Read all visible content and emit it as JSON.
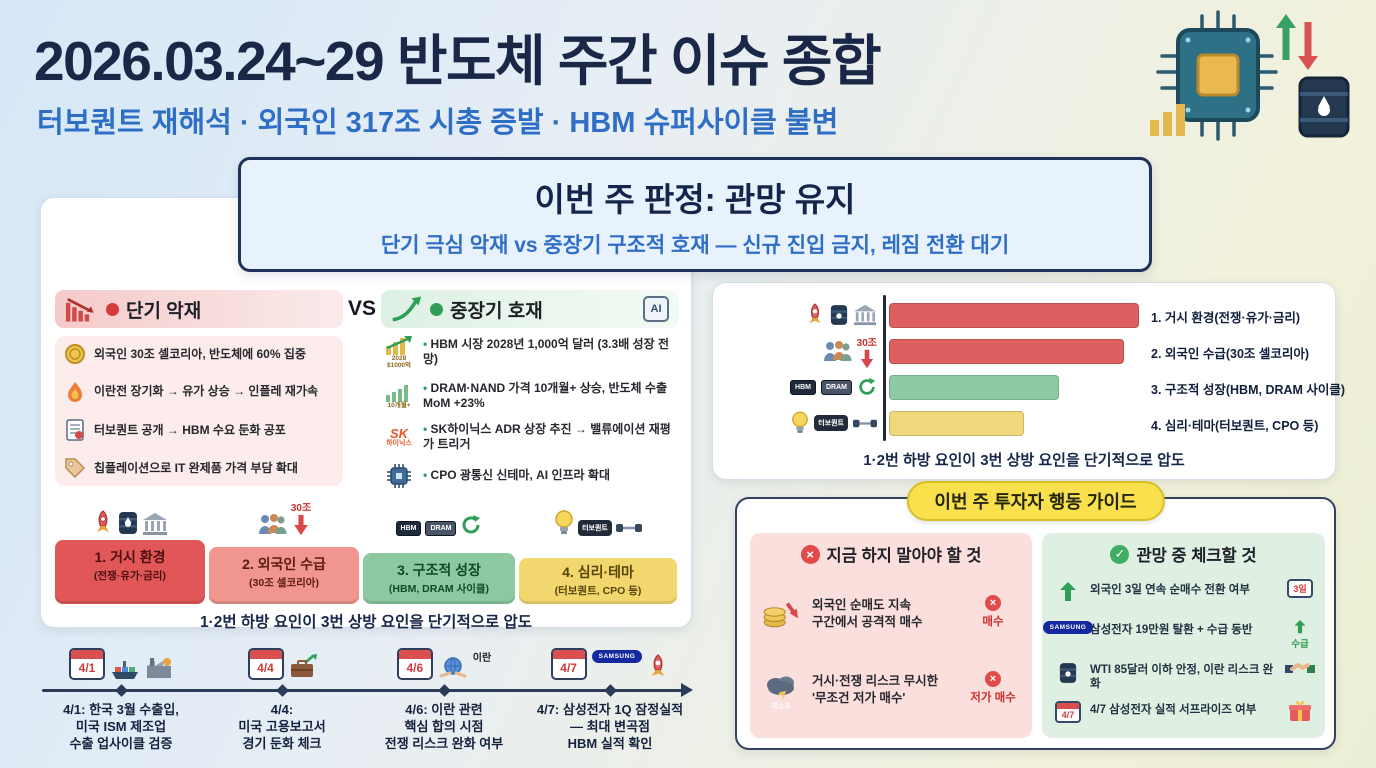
{
  "header": {
    "title": "2026.03.24~29 반도체 주간 이슈 종합",
    "subtitle": "터보퀀트 재해석 · 외국인 317조 시총 증발 · HBM 슈퍼사이클 불변"
  },
  "verdict": {
    "title": "이번 주 판정: 관망 유지",
    "subtitle": "단기 극심 악재 vs 중장기 구조적 호재 — 신규 진입 금지, 레짐 전환 대기"
  },
  "comparison": {
    "vs": "VS",
    "negative": {
      "title": "단기 악재",
      "items": [
        "외국인 30조 셀코리아, 반도체에 60% 집중",
        "이란전 장기화 → 유가 상승 → 인플레 재가속",
        "터보퀀트 공개 → HBM 수요 둔화 공포",
        "칩플레이션으로 IT 완제품 가격 부담 확대"
      ]
    },
    "positive": {
      "title": "중장기 호재",
      "items": [
        "HBM 시장 2028년 1,000억 달러 (3.3배 성장 전망)",
        "DRAM·NAND 가격 10개월+ 상승, 반도체 수출 MoM +23%",
        "SK하이닉스 ADR 상장 추진 → 밸류에이션 재평가 트리거",
        "CPO 광통신 신테마, AI 인프라 확대"
      ]
    }
  },
  "factors": {
    "items": [
      {
        "label": "1. 거시 환경",
        "sub": "(전쟁·유가·금리)"
      },
      {
        "label": "2. 외국인 수급",
        "sub": "(30조 셀코리아)"
      },
      {
        "label": "3. 구조적 성장",
        "sub": "(HBM, DRAM 사이클)"
      },
      {
        "label": "4. 심리·테마",
        "sub": "(터보퀀트, CPO 등)"
      }
    ],
    "caption": "1·2번 하방 요인이 3번 상방 요인을 단기적으로 압도"
  },
  "chart_data": {
    "type": "bar",
    "orientation": "horizontal",
    "categories": [
      "1. 거시 환경(전쟁·유가·금리)",
      "2. 외국인 수급(30조 셀코리아)",
      "3. 구조적 성장(HBM, DRAM 사이클)",
      "4. 심리·테마(터보퀀트, CPO 등)"
    ],
    "values": [
      100,
      94,
      68,
      54
    ],
    "colors": [
      "#dd5f5f",
      "#dd5f5f",
      "#8ecba5",
      "#f0d77b"
    ],
    "caption": "1·2번 하방 요인이 3번 상방 요인을 단기적으로 압도"
  },
  "timeline": [
    {
      "date": "4/1",
      "text": "4/1: 한국 3월 수출입,\n미국 ISM 제조업\n수출 업사이클 검증"
    },
    {
      "date": "4/4",
      "text": "4/4:\n미국 고용보고서\n경기 둔화 체크"
    },
    {
      "date": "4/6",
      "text": "4/6: 이란 관련\n핵심 합의 시점\n전쟁 리스크 완화 여부"
    },
    {
      "date": "4/7",
      "text": "4/7: 삼성전자 1Q 잠정실적\n— 최대 변곡점\nHBM 실적 확인"
    }
  ],
  "guide": {
    "title": "이번 주 투자자 행동 가이드",
    "dont": {
      "title": "지금 하지 말아야 할 것",
      "items": [
        {
          "text": "외국인 순매도 지속\n구간에서 공격적 매수",
          "tag": "매수"
        },
        {
          "text": "거시·전쟁 리스크 무시한\n'무조건 저가 매수'",
          "tag": "저가 매수"
        }
      ]
    },
    "check": {
      "title": "관망 중 체크할 것",
      "items": [
        {
          "text": "외국인 3일 연속 순매수 전환 여부",
          "tag": "3일"
        },
        {
          "text": "삼성전자 19만원 탈환 + 수급 동반",
          "tag": "수급"
        },
        {
          "text": "WTI 85달러 이하 안정, 이란 리스크 완화",
          "tag": ""
        },
        {
          "text": "4/7 삼성전자 실적 서프라이즈 여부",
          "tag": ""
        }
      ]
    }
  },
  "icon_labels": {
    "ai": "AI",
    "hbm": "HBM",
    "dram": "DRAM",
    "sell_30": "30조",
    "turbo": "터보퀀트",
    "sk": "SK",
    "sk_name": "하이닉스",
    "samsung": "SAMSUNG",
    "iran": "이란",
    "risk": "리스크",
    "y2028": "2028",
    "b1000": "$1000억",
    "m10": "10개월+",
    "d47": "4/7",
    "cross": "×",
    "check": "✓"
  },
  "theme": {
    "navy": "#1a2747",
    "blue": "#2f6ec5",
    "red": "#dd5f5f",
    "green": "#8ecba5",
    "yellow": "#f0d77b",
    "badge_yellow": "#f8e14d"
  }
}
